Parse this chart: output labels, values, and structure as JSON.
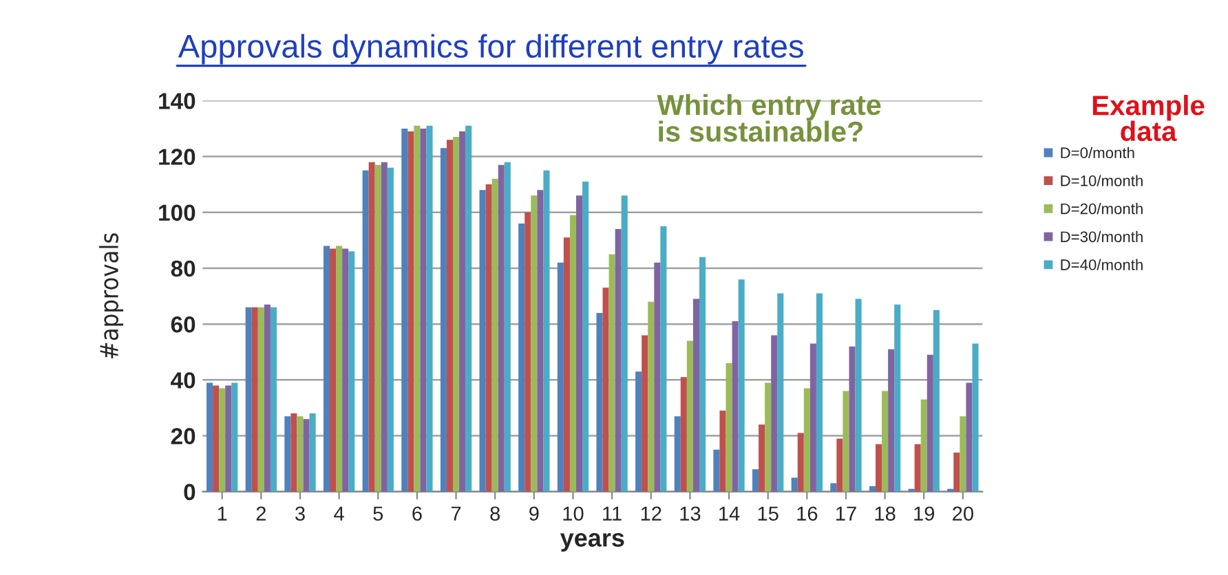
{
  "chart_data": {
    "type": "bar",
    "title": "Approvals dynamics for different entry rates",
    "xlabel": "years",
    "ylabel": "#approvals",
    "annotations": [
      "Which entry rate is sustainable?",
      "Example data"
    ],
    "categories": [
      "1",
      "2",
      "3",
      "4",
      "5",
      "6",
      "7",
      "8",
      "9",
      "10",
      "11",
      "12",
      "13",
      "14",
      "15",
      "16",
      "17",
      "18",
      "19",
      "20"
    ],
    "series": [
      {
        "name": "D=0/month",
        "color": "#4f81bd",
        "values": [
          39,
          66,
          27,
          88,
          115,
          130,
          123,
          108,
          96,
          82,
          64,
          43,
          27,
          15,
          8,
          5,
          3,
          2,
          1,
          1
        ]
      },
      {
        "name": "D=10/month",
        "color": "#c0504d",
        "values": [
          38,
          66,
          28,
          87,
          118,
          129,
          126,
          110,
          100,
          91,
          73,
          56,
          41,
          29,
          24,
          21,
          19,
          17,
          17,
          14
        ]
      },
      {
        "name": "D=20/month",
        "color": "#9bbb59",
        "values": [
          37,
          66,
          27,
          88,
          117,
          131,
          127,
          112,
          106,
          99,
          85,
          68,
          54,
          46,
          39,
          37,
          36,
          36,
          33,
          27
        ]
      },
      {
        "name": "D=30/month",
        "color": "#8064a2",
        "values": [
          38,
          67,
          26,
          87,
          118,
          130,
          129,
          117,
          108,
          106,
          94,
          82,
          69,
          61,
          56,
          53,
          52,
          51,
          49,
          39
        ]
      },
      {
        "name": "D=40/month",
        "color": "#4bacc6",
        "values": [
          39,
          66,
          28,
          86,
          116,
          131,
          131,
          118,
          115,
          111,
          106,
          95,
          84,
          76,
          71,
          71,
          69,
          67,
          65,
          53
        ]
      }
    ],
    "ylim": [
      0,
      140
    ],
    "yticks": [
      0,
      20,
      40,
      60,
      80,
      100,
      120,
      140
    ],
    "grid": "y",
    "legend": "right"
  }
}
